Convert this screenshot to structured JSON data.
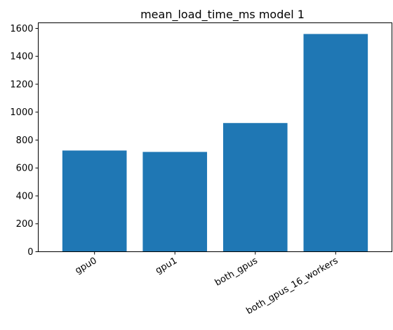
{
  "chart_data": {
    "type": "bar",
    "title": "mean_load_time_ms model 1",
    "xlabel": "",
    "ylabel": "",
    "categories": [
      "gpu0",
      "gpu1",
      "both_gpus",
      "both_gpus_16_workers"
    ],
    "values": [
      725,
      715,
      922,
      1560
    ],
    "ylim": [
      0,
      1640
    ],
    "yticks": [
      0,
      200,
      400,
      600,
      800,
      1000,
      1200,
      1400,
      1600
    ],
    "bar_color": "#1f77b4",
    "grid": false,
    "legend": "none"
  }
}
